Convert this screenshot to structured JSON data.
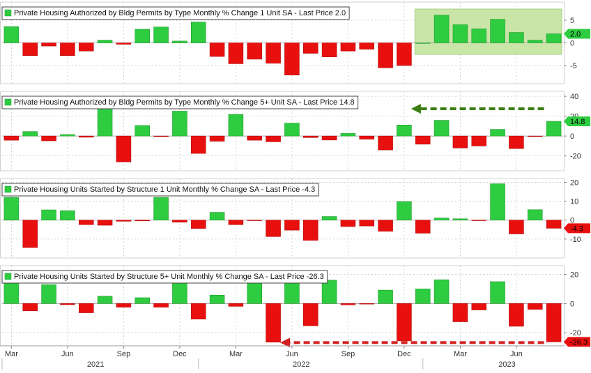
{
  "colors": {
    "positive": "#2ecc40",
    "negative": "#e8100f",
    "positive_stroke": "#1e9a2a",
    "negative_stroke": "#b30a0a",
    "highlight_box": "#c9e5a8",
    "arrow_green": "#3a7d10",
    "arrow_red": "#d42020",
    "grid": "#c8c8c8",
    "axis_text": "#333333",
    "last_price_green_bg": "#2ecc40",
    "last_price_red_bg": "#e8100f"
  },
  "x_axis": {
    "month_labels": [
      "Mar",
      "Jun",
      "Sep",
      "Dec",
      "Mar",
      "Jun",
      "Sep",
      "Dec",
      "Mar",
      "Jun"
    ],
    "month_label_index": [
      0,
      3,
      6,
      9,
      12,
      15,
      18,
      21,
      24,
      27
    ],
    "year_labels": [
      "2021",
      "2022",
      "2023"
    ],
    "year_label_index": [
      4.5,
      15.5,
      26.5
    ]
  },
  "chart_data": [
    {
      "type": "bar",
      "title": "Private Housing Authorized by Bldg Permits by Type Monthly % Change 1 Unit SA - Last Price 2.0",
      "last_price": "2.0",
      "ylim": [
        -9,
        9
      ],
      "yticks": [
        "5",
        "0",
        "-5"
      ],
      "ytick_values": [
        5,
        0,
        -5
      ],
      "highlight_range": [
        22,
        30
      ],
      "values": [
        3.6,
        -2.8,
        -0.7,
        -2.8,
        -1.8,
        0.6,
        -0.3,
        3.0,
        3.5,
        0.4,
        4.6,
        -3.0,
        -4.6,
        -3.6,
        -4.5,
        -7.1,
        -2.3,
        -3.1,
        -1.8,
        -1.4,
        -5.5,
        -5.0,
        0.0,
        6.1,
        4.0,
        3.1,
        5.2,
        2.3,
        0.6,
        2.0
      ]
    },
    {
      "type": "bar",
      "title": "Private Housing Authorized by Bldg Permits by Type Monthly % Change 5+ Unit SA - Last Price 14.8",
      "last_price": "14.8",
      "ylim": [
        -35,
        45
      ],
      "yticks": [
        "40",
        "20",
        "0",
        "-20"
      ],
      "ytick_values": [
        40,
        20,
        0,
        -20
      ],
      "arrow_to_bar": 21,
      "values": [
        -4.2,
        4.5,
        -4.8,
        1.5,
        -1.2,
        30.6,
        -26.0,
        10.6,
        -0.6,
        25.0,
        -17.5,
        -5.2,
        21.8,
        -4.2,
        -5.8,
        13.0,
        -1.5,
        -4.0,
        2.6,
        -3.2,
        -14.0,
        11.1,
        -8.2,
        15.8,
        -12.0,
        -10.0,
        6.7,
        -12.6,
        -0.3,
        14.8
      ]
    },
    {
      "type": "bar",
      "title": "Private Housing Units Started by Structure 1 Unit Monthly % Change SA - Last Price -4.3",
      "last_price": "-4.3",
      "ylim": [
        -20,
        22
      ],
      "yticks": [
        "20",
        "10",
        "0",
        "-10"
      ],
      "ytick_values": [
        20,
        10,
        0,
        -10
      ],
      "values": [
        12.0,
        -14.5,
        5.4,
        5.0,
        -2.4,
        -2.7,
        -0.6,
        -0.4,
        12.0,
        -1.1,
        -4.4,
        4.1,
        -2.4,
        -0.2,
        -8.7,
        -5.3,
        -10.7,
        1.9,
        -3.4,
        -3.1,
        -5.9,
        9.8,
        -6.9,
        1.1,
        0.7,
        -0.2,
        19.2,
        -7.3,
        5.5,
        -4.3
      ]
    },
    {
      "type": "bar",
      "title": "Private Housing Units Started by Structure 5+ Unit Monthly % Change SA - Last Price -26.3",
      "last_price": "-26.3",
      "ylim": [
        -29,
        26
      ],
      "yticks": [
        "20",
        "0",
        "-20"
      ],
      "ytick_values": [
        20,
        0,
        -20
      ],
      "arrow_to_bar": 14,
      "values": [
        16.3,
        -5.0,
        12.9,
        -0.8,
        -6.3,
        5.0,
        -2.5,
        4.0,
        -2.5,
        15.5,
        -10.7,
        5.8,
        -1.9,
        15.0,
        -26.5,
        14.8,
        -15.3,
        16.0,
        -0.9,
        -0.1,
        9.2,
        -25.6,
        10.0,
        16.3,
        -12.5,
        -4.4,
        15.0,
        -15.6,
        -4.0,
        -26.3
      ]
    }
  ]
}
